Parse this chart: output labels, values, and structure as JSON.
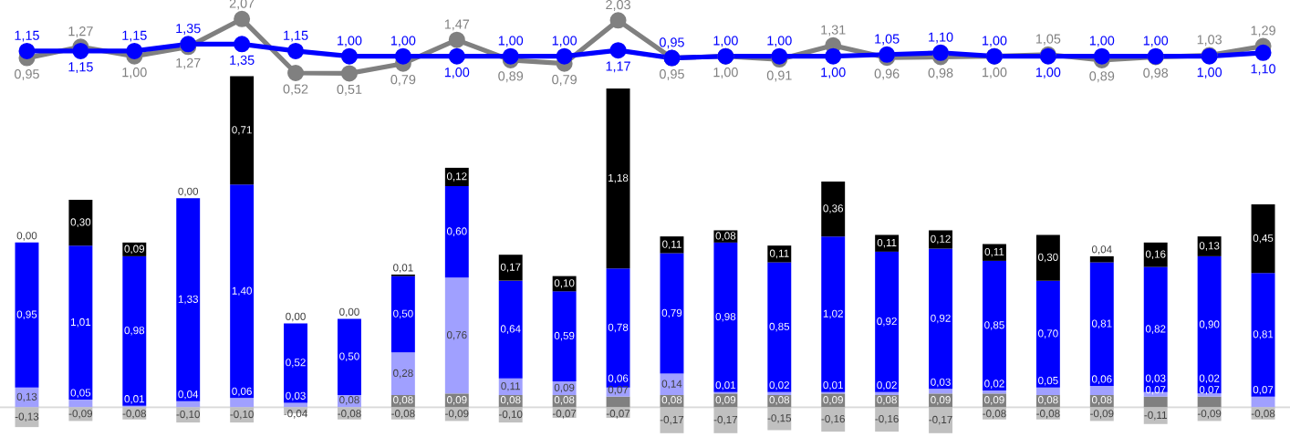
{
  "chart_data": [
    {
      "type": "line",
      "marker": "circle",
      "categories": [
        null,
        null,
        null,
        null,
        null,
        null,
        null,
        null,
        null,
        null,
        null,
        null,
        null,
        null,
        null,
        null,
        null,
        null,
        null,
        null,
        null,
        null,
        null,
        null
      ],
      "series": [
        {
          "color": "#808080",
          "values": [
            0.95,
            1.27,
            1.0,
            1.27,
            2.07,
            0.52,
            0.51,
            0.79,
            1.47,
            0.89,
            0.79,
            2.03,
            0.95,
            1.0,
            0.91,
            1.31,
            0.96,
            0.98,
            1.0,
            1.05,
            0.89,
            0.98,
            1.03,
            1.29
          ],
          "value_labels": [
            "0,95",
            "1,27",
            "1,00",
            "1,27",
            "2,07",
            "0,52",
            "0,51",
            "0,79",
            "1,47",
            "0,89",
            "0,79",
            "2,03",
            "0,95",
            "1,00",
            "0,91",
            "1,31",
            "0,96",
            "0,98",
            "1,00",
            "1,05",
            "0,89",
            "0,98",
            "1,03",
            "1,29"
          ]
        },
        {
          "color": "#0000ff",
          "values": [
            1.15,
            1.15,
            1.15,
            1.35,
            1.35,
            1.15,
            1.0,
            1.0,
            1.0,
            1.0,
            1.0,
            1.17,
            0.95,
            1.0,
            1.0,
            1.0,
            1.05,
            1.1,
            1.0,
            1.0,
            1.0,
            1.0,
            1.0,
            1.1
          ],
          "value_labels": [
            "1,15",
            "1,15",
            "1,15",
            "1,35",
            "1,35",
            "1,15",
            "1,00",
            "1,00",
            "1,00",
            "1,00",
            "1,00",
            "1,17",
            "0,95",
            "1,00",
            "1,00",
            "1,00",
            "1,05",
            "1,10",
            "1,00",
            "1,00",
            "1,00",
            "1,00",
            "1,00",
            "1,10"
          ]
        }
      ]
    },
    {
      "type": "bar",
      "stacked": true,
      "categories": [
        null,
        null,
        null,
        null,
        null,
        null,
        null,
        null,
        null,
        null,
        null,
        null,
        null,
        null,
        null,
        null,
        null,
        null,
        null,
        null,
        null,
        null,
        null,
        null
      ],
      "series": [
        {
          "color": "#808080",
          "values": [
            null,
            null,
            null,
            null,
            null,
            null,
            null,
            0.08,
            0.09,
            0.08,
            0.08,
            0.07,
            0.08,
            0.09,
            0.08,
            0.09,
            0.08,
            0.09,
            0.09,
            0.08,
            0.08,
            0.07,
            0.07,
            null
          ],
          "value_labels": [
            null,
            null,
            null,
            null,
            null,
            null,
            null,
            "0,08",
            "0,09",
            "0,08",
            "0,08",
            "0,07",
            "0,08",
            "0,09",
            "0,08",
            "0,09",
            "0,08",
            "0,09",
            "0,09",
            "0,08",
            "0,08",
            "0,07",
            "0,07",
            null
          ]
        },
        {
          "color": "#a0a0ff",
          "values": [
            0.13,
            0.05,
            0.01,
            0.04,
            0.06,
            0.03,
            0.08,
            0.28,
            0.76,
            0.11,
            0.09,
            0.06,
            0.14,
            0.01,
            0.02,
            0.01,
            0.02,
            0.03,
            0.02,
            0.05,
            0.06,
            0.03,
            0.02,
            0.07
          ],
          "value_labels": [
            "0,13",
            "0,05",
            "0,01",
            "0,04",
            "0,06",
            "0,03",
            "0,08",
            "0,28",
            "0,76",
            "0,11",
            "0,09",
            "0,06",
            "0,14",
            "0,01",
            "0,02",
            "0,01",
            "0,02",
            "0,03",
            "0,02",
            "0,05",
            "0,06",
            "0,03",
            "0,02",
            "0,07"
          ]
        },
        {
          "color": "#0000ff",
          "values": [
            0.95,
            1.01,
            0.98,
            1.33,
            1.4,
            0.52,
            0.5,
            0.5,
            0.6,
            0.64,
            0.59,
            0.78,
            0.79,
            0.98,
            0.85,
            1.02,
            0.92,
            0.92,
            0.85,
            0.7,
            0.81,
            0.82,
            0.9,
            0.81
          ],
          "value_labels": [
            "0,95",
            "1,01",
            "0,98",
            "1,33",
            "1,40",
            "0,52",
            "0,50",
            "0,50",
            "0,60",
            "0,64",
            "0,59",
            "0,78",
            "0,79",
            "0,98",
            "0,85",
            "1,02",
            "0,92",
            "0,92",
            "0,85",
            "0,70",
            "0,81",
            "0,82",
            "0,90",
            "0,81"
          ]
        },
        {
          "color": "#000000",
          "values": [
            0.0,
            0.3,
            0.09,
            0.0,
            0.71,
            0.0,
            0.0,
            0.01,
            0.12,
            0.17,
            0.1,
            1.18,
            0.11,
            0.08,
            0.11,
            0.36,
            0.11,
            0.12,
            0.11,
            0.3,
            0.04,
            0.16,
            0.13,
            0.45
          ],
          "value_labels": [
            "0,00",
            "0,30",
            "0,09",
            "0,00",
            "0,71",
            "0,00",
            "0,00",
            "0,01",
            "0,12",
            "0,17",
            "0,10",
            "1,18",
            "0,11",
            "0,08",
            "0,11",
            "0,36",
            "0,11",
            "0,12",
            "0,11",
            "0,30",
            "0,04",
            "0,16",
            "0,13",
            "0,45"
          ]
        },
        {
          "color": "#c0c0c0",
          "values": [
            -0.13,
            -0.09,
            -0.08,
            -0.1,
            -0.1,
            -0.04,
            -0.08,
            -0.08,
            -0.09,
            -0.1,
            -0.07,
            -0.07,
            -0.17,
            -0.17,
            -0.15,
            -0.16,
            -0.16,
            -0.17,
            -0.08,
            -0.08,
            -0.09,
            -0.11,
            -0.09,
            -0.08
          ],
          "value_labels": [
            "-0,13",
            "-0,09",
            "-0,08",
            "-0,10",
            "-0,10",
            "-0,04",
            "-0,08",
            "-0,08",
            "-0,09",
            "-0,10",
            "-0,07",
            "-0,07",
            "-0,17",
            "-0,17",
            "-0,15",
            "-0,16",
            "-0,16",
            "-0,17",
            "-0,08",
            "-0,08",
            "-0,09",
            "-0,11",
            "-0,09",
            "-0,08"
          ]
        }
      ]
    }
  ]
}
